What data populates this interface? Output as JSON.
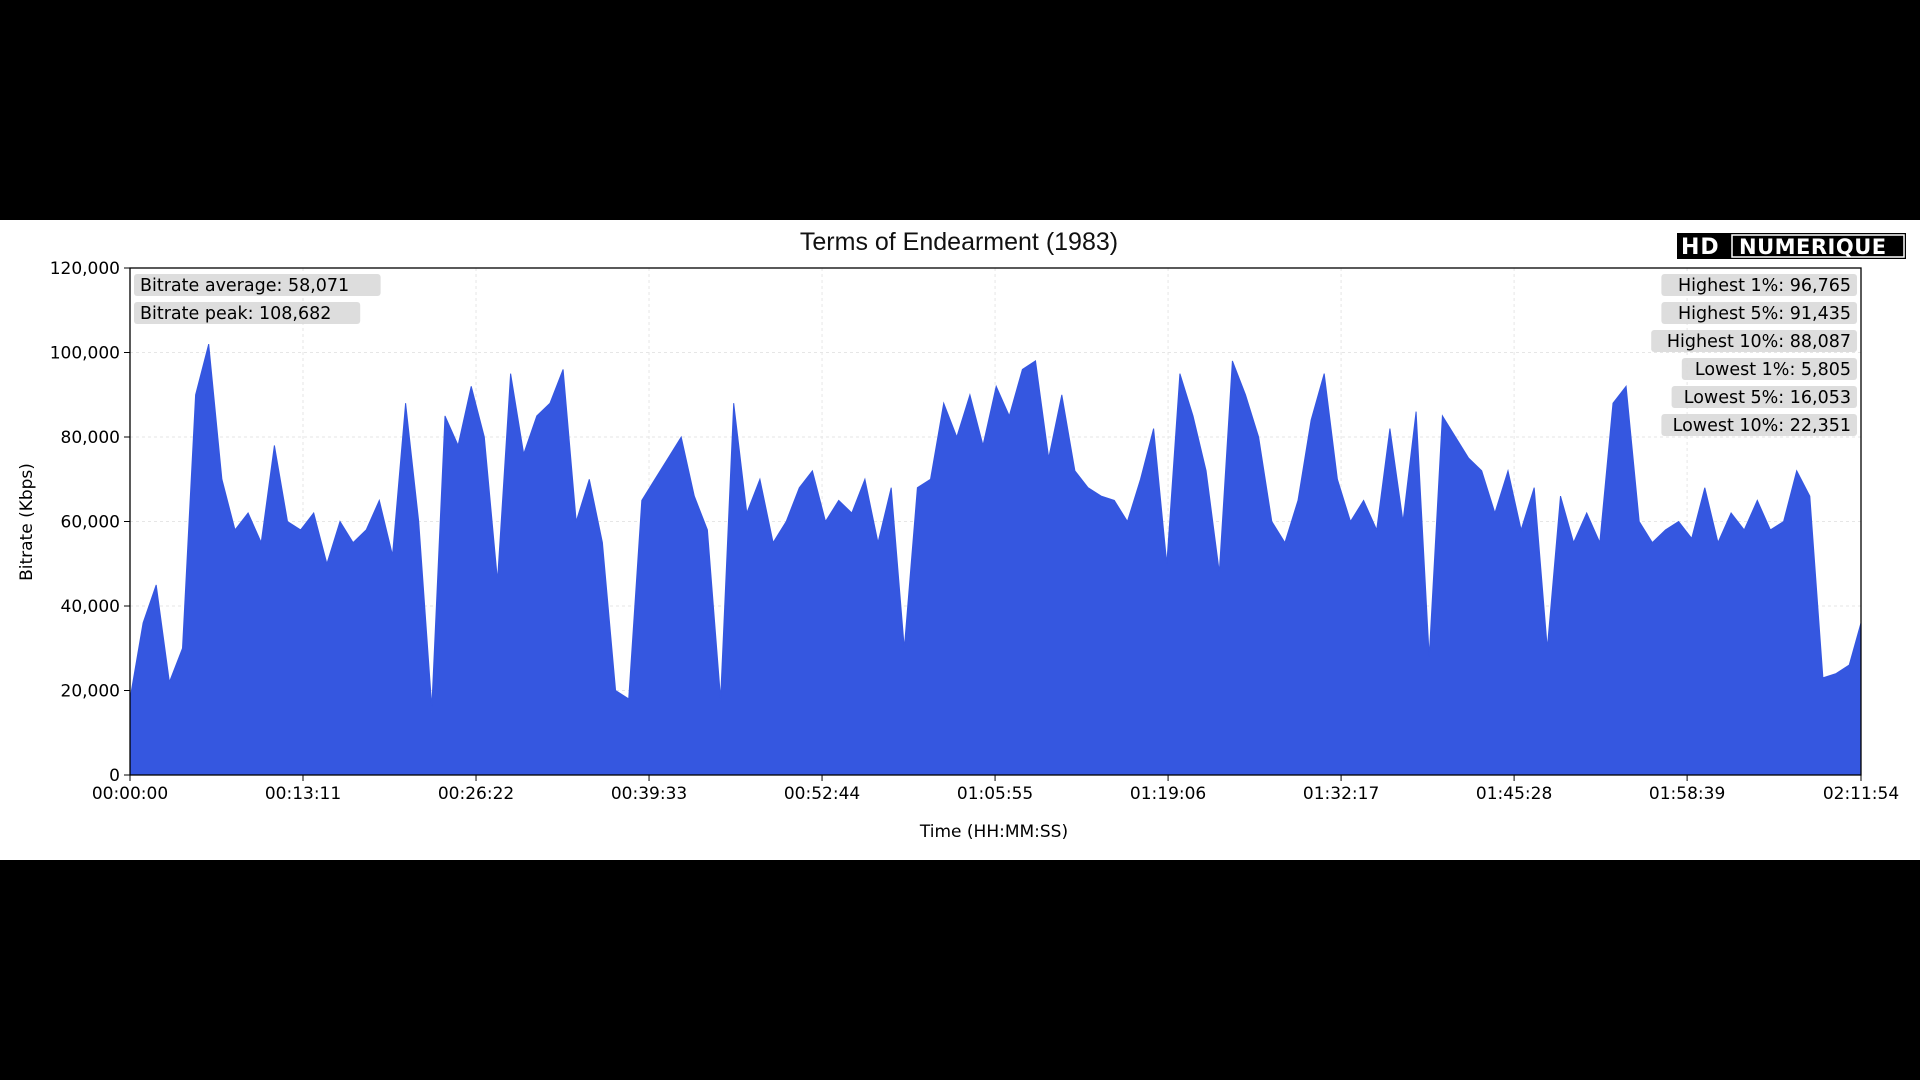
{
  "chart_data": {
    "type": "area",
    "title": "Terms of Endearment (1983)",
    "xlabel": "Time (HH:MM:SS)",
    "ylabel": "Bitrate (Kbps)",
    "ylim": [
      0,
      120000
    ],
    "xlim": [
      "00:00:00",
      "02:11:54"
    ],
    "x_ticks": [
      "00:00:00",
      "00:13:11",
      "00:26:22",
      "00:39:33",
      "00:52:44",
      "01:05:55",
      "01:19:06",
      "01:32:17",
      "01:45:28",
      "01:58:39",
      "02:11:54"
    ],
    "y_ticks": [
      "0",
      "20,000",
      "40,000",
      "60,000",
      "80,000",
      "100,000",
      "120,000"
    ],
    "grid": true,
    "series": [
      {
        "color": "#3557e0",
        "x": [
          "00:00:00",
          "00:01:00",
          "00:02:00",
          "00:03:00",
          "00:04:00",
          "00:05:00",
          "00:06:00",
          "00:07:00",
          "00:08:00",
          "00:09:00",
          "00:10:00",
          "00:11:00",
          "00:12:00",
          "00:13:00",
          "00:14:00",
          "00:15:00",
          "00:16:00",
          "00:17:00",
          "00:18:00",
          "00:19:00",
          "00:20:00",
          "00:21:00",
          "00:22:00",
          "00:23:00",
          "00:24:00",
          "00:25:00",
          "00:26:00",
          "00:27:00",
          "00:28:00",
          "00:29:00",
          "00:30:00",
          "00:31:00",
          "00:32:00",
          "00:33:00",
          "00:34:00",
          "00:35:00",
          "00:36:00",
          "00:37:00",
          "00:38:00",
          "00:39:00",
          "00:40:00",
          "00:41:00",
          "00:42:00",
          "00:43:00",
          "00:44:00",
          "00:45:00",
          "00:46:00",
          "00:47:00",
          "00:48:00",
          "00:49:00",
          "00:50:00",
          "00:51:00",
          "00:52:00",
          "00:53:00",
          "00:54:00",
          "00:55:00",
          "00:56:00",
          "00:57:00",
          "00:58:00",
          "00:59:00",
          "01:00:00",
          "01:01:00",
          "01:02:00",
          "01:03:00",
          "01:04:00",
          "01:05:00",
          "01:06:00",
          "01:07:00",
          "01:08:00",
          "01:09:00",
          "01:10:00",
          "01:11:00",
          "01:12:00",
          "01:13:00",
          "01:14:00",
          "01:15:00",
          "01:16:00",
          "01:17:00",
          "01:18:00",
          "01:19:00",
          "01:20:00",
          "01:21:00",
          "01:22:00",
          "01:23:00",
          "01:24:00",
          "01:25:00",
          "01:26:00",
          "01:27:00",
          "01:28:00",
          "01:29:00",
          "01:30:00",
          "01:31:00",
          "01:32:00",
          "01:33:00",
          "01:34:00",
          "01:35:00",
          "01:36:00",
          "01:37:00",
          "01:38:00",
          "01:39:00",
          "01:40:00",
          "01:41:00",
          "01:42:00",
          "01:43:00",
          "01:44:00",
          "01:45:00",
          "01:46:00",
          "01:47:00",
          "01:48:00",
          "01:49:00",
          "01:50:00",
          "01:51:00",
          "01:52:00",
          "01:53:00",
          "01:54:00",
          "01:55:00",
          "01:56:00",
          "01:57:00",
          "01:58:00",
          "01:59:00",
          "02:00:00",
          "02:01:00",
          "02:02:00",
          "02:03:00",
          "02:04:00",
          "02:05:00",
          "02:06:00",
          "02:07:00",
          "02:08:00",
          "02:09:00",
          "02:10:00",
          "02:11:00",
          "02:11:54"
        ],
        "values": [
          18000,
          36000,
          45000,
          22000,
          30000,
          90000,
          102000,
          70000,
          58000,
          62000,
          55000,
          78000,
          60000,
          58000,
          62000,
          50000,
          60000,
          55000,
          58000,
          65000,
          52000,
          88000,
          60000,
          16000,
          85000,
          78000,
          92000,
          80000,
          46000,
          95000,
          76000,
          85000,
          88000,
          96000,
          60000,
          70000,
          55000,
          20000,
          18000,
          65000,
          70000,
          75000,
          80000,
          66000,
          58000,
          18000,
          88000,
          62000,
          70000,
          55000,
          60000,
          68000,
          72000,
          60000,
          65000,
          62000,
          70000,
          55000,
          68000,
          30000,
          68000,
          70000,
          88000,
          80000,
          90000,
          78000,
          92000,
          85000,
          96000,
          98000,
          75000,
          90000,
          72000,
          68000,
          66000,
          65000,
          60000,
          70000,
          82000,
          50000,
          95000,
          85000,
          72000,
          48000,
          98000,
          90000,
          80000,
          60000,
          55000,
          65000,
          84000,
          95000,
          70000,
          60000,
          65000,
          58000,
          82000,
          60000,
          86000,
          28000,
          85000,
          80000,
          75000,
          72000,
          62000,
          72000,
          58000,
          68000,
          30000,
          66000,
          55000,
          62000,
          55000,
          88000,
          92000,
          60000,
          55000,
          58000,
          60000,
          56000,
          68000,
          55000,
          62000,
          58000,
          65000,
          58000,
          60000,
          72000,
          66000,
          23000,
          24000,
          26000,
          36000
        ]
      }
    ]
  },
  "stats_left": [
    "Bitrate average: 58,071",
    "Bitrate peak: 108,682"
  ],
  "stats_right": [
    "Highest 1%: 96,765",
    "Highest 5%: 91,435",
    "Highest 10%: 88,087",
    "Lowest 1%: 5,805",
    "Lowest 5%: 16,053",
    "Lowest 10%: 22,351"
  ],
  "logo": {
    "part1": "HD",
    "part2": "NUMERIQUE"
  }
}
